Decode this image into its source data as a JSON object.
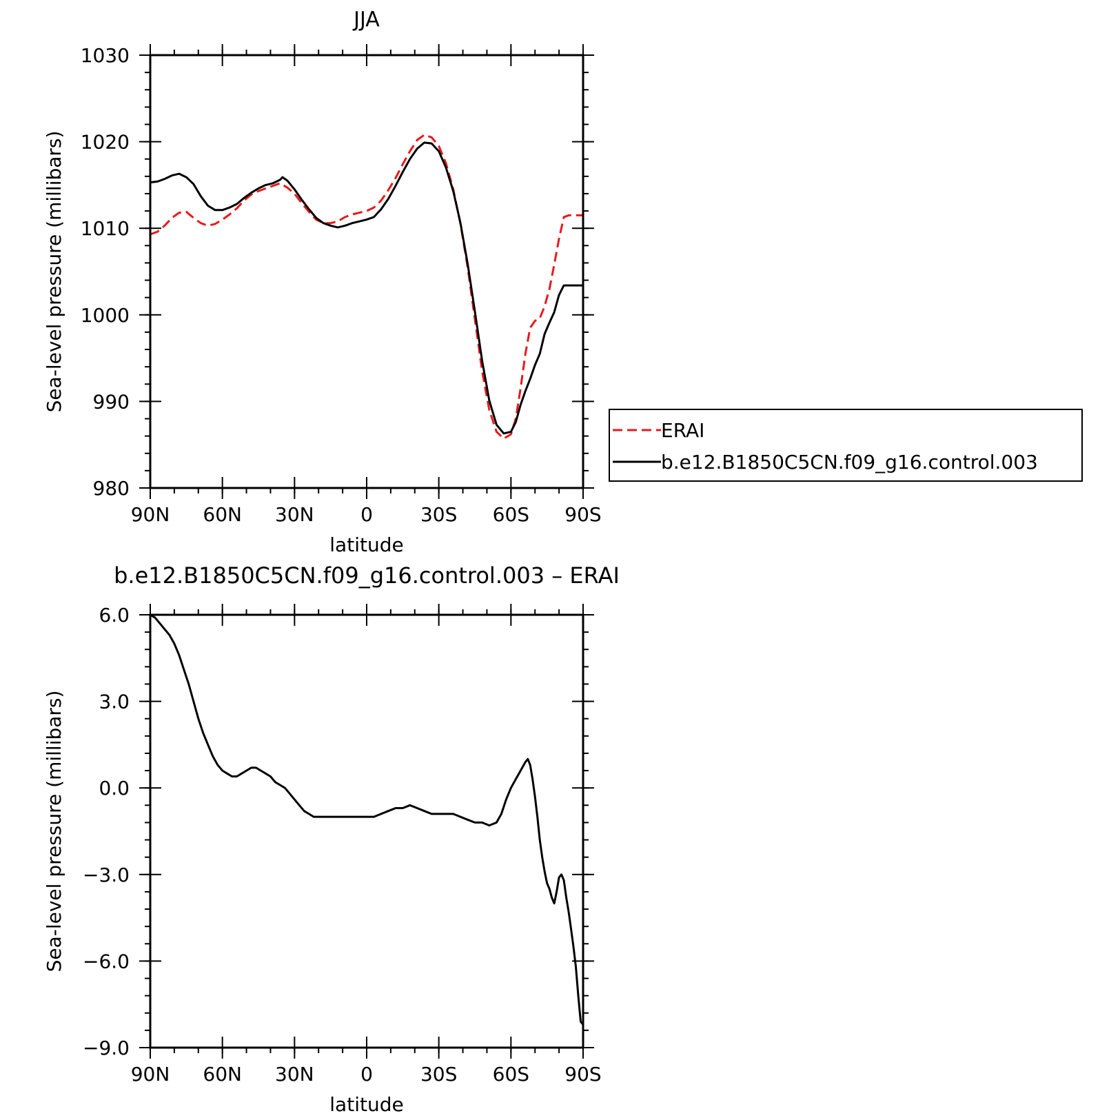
{
  "chart_data": [
    {
      "type": "line",
      "title": "JJA",
      "xlabel": "latitude",
      "ylabel": "Sea-level pressure (millibars)",
      "xlim": [
        90,
        -90
      ],
      "ylim": [
        980,
        1030
      ],
      "x_ticks": [
        {
          "value": 90,
          "label": "90N"
        },
        {
          "value": 60,
          "label": "60N"
        },
        {
          "value": 30,
          "label": "30N"
        },
        {
          "value": 0,
          "label": "0"
        },
        {
          "value": -30,
          "label": "30S"
        },
        {
          "value": -60,
          "label": "60S"
        },
        {
          "value": -90,
          "label": "90S"
        }
      ],
      "y_ticks": [
        {
          "value": 980,
          "label": "980"
        },
        {
          "value": 990,
          "label": "990"
        },
        {
          "value": 1000,
          "label": "1000"
        },
        {
          "value": 1010,
          "label": "1010"
        },
        {
          "value": 1020,
          "label": "1020"
        },
        {
          "value": 1030,
          "label": "1030"
        }
      ],
      "legend": {
        "position": "right",
        "entries": [
          {
            "label": "ERAI",
            "color": "#e8191b",
            "dash": true
          },
          {
            "label": "b.e12.B1850C5CN.f09_g16.control.003",
            "color": "#000000",
            "dash": false
          }
        ]
      },
      "series": [
        {
          "name": "ERAI",
          "color": "#e8191b",
          "dash": true,
          "x": [
            90,
            87,
            84,
            81,
            78,
            75,
            72,
            69,
            66,
            63,
            60,
            57,
            54,
            51,
            48,
            45,
            42,
            39,
            36,
            33,
            30,
            27,
            24,
            21,
            18,
            15,
            12,
            9,
            6,
            3,
            0,
            -3,
            -6,
            -9,
            -12,
            -15,
            -18,
            -21,
            -24,
            -27,
            -30,
            -33,
            -36,
            -39,
            -42,
            -45,
            -48,
            -51,
            -54,
            -57,
            -60,
            -62,
            -64,
            -66,
            -68,
            -70,
            -72,
            -74,
            -76,
            -78,
            -80,
            -82,
            -84,
            -86,
            -88,
            -90
          ],
          "y": [
            1009.3,
            1009.6,
            1010.3,
            1011.2,
            1011.8,
            1011.9,
            1011.2,
            1010.6,
            1010.3,
            1010.5,
            1011.0,
            1011.6,
            1012.3,
            1013.2,
            1013.9,
            1014.3,
            1014.6,
            1014.9,
            1015.2,
            1014.7,
            1014.0,
            1012.9,
            1011.9,
            1011.0,
            1010.6,
            1010.6,
            1010.8,
            1011.3,
            1011.6,
            1011.8,
            1012.0,
            1012.4,
            1013.2,
            1014.4,
            1015.8,
            1017.4,
            1018.9,
            1020.2,
            1020.8,
            1020.5,
            1019.5,
            1017.5,
            1014.5,
            1010.5,
            1005.5,
            999.5,
            993.5,
            989.0,
            986.5,
            985.7,
            986.2,
            988.0,
            991.5,
            995.5,
            998.5,
            999.3,
            999.6,
            1001.0,
            1003.0,
            1005.8,
            1008.8,
            1011.3,
            1011.5,
            1011.5,
            1011.5,
            1011.5
          ]
        },
        {
          "name": "b.e12.B1850C5CN.f09_g16.control.003",
          "color": "#000000",
          "dash": false,
          "x": [
            90,
            87,
            84,
            81,
            78,
            75,
            72,
            69,
            66,
            63,
            60,
            57,
            54,
            51,
            48,
            45,
            42,
            39,
            36,
            35,
            33,
            30,
            27,
            24,
            21,
            18,
            15,
            12,
            9,
            6,
            3,
            0,
            -3,
            -6,
            -9,
            -12,
            -15,
            -18,
            -21,
            -24,
            -27,
            -30,
            -33,
            -36,
            -39,
            -42,
            -45,
            -48,
            -51,
            -54,
            -57,
            -60,
            -62,
            -64,
            -66,
            -68,
            -70,
            -72,
            -74,
            -76,
            -78,
            -80,
            -82,
            -84,
            -86,
            -88,
            -90
          ],
          "y": [
            1015.3,
            1015.4,
            1015.7,
            1016.1,
            1016.3,
            1015.9,
            1015.1,
            1013.7,
            1012.6,
            1012.1,
            1012.1,
            1012.4,
            1012.8,
            1013.5,
            1014.1,
            1014.6,
            1015.0,
            1015.2,
            1015.6,
            1015.9,
            1015.5,
            1014.5,
            1013.3,
            1012.2,
            1011.2,
            1010.6,
            1010.3,
            1010.1,
            1010.3,
            1010.6,
            1010.8,
            1011.0,
            1011.3,
            1012.2,
            1013.4,
            1014.9,
            1016.5,
            1018.0,
            1019.2,
            1019.9,
            1019.8,
            1018.9,
            1017.0,
            1014.3,
            1010.6,
            1005.9,
            1000.4,
            994.7,
            990.1,
            987.3,
            986.3,
            986.5,
            987.6,
            989.6,
            991.2,
            992.6,
            994.2,
            995.5,
            997.8,
            999.1,
            1000.3,
            1002.3,
            1003.4,
            1003.4,
            1003.4,
            1003.4,
            1003.4
          ]
        }
      ]
    },
    {
      "type": "line",
      "title": "b.e12.B1850C5CN.f09_g16.control.003 – ERAI",
      "xlabel": "latitude",
      "ylabel": "Sea-level pressure (millibars)",
      "xlim": [
        90,
        -90
      ],
      "ylim": [
        -9,
        6
      ],
      "x_ticks": [
        {
          "value": 90,
          "label": "90N"
        },
        {
          "value": 60,
          "label": "60N"
        },
        {
          "value": 30,
          "label": "30N"
        },
        {
          "value": 0,
          "label": "0"
        },
        {
          "value": -30,
          "label": "30S"
        },
        {
          "value": -60,
          "label": "60S"
        },
        {
          "value": -90,
          "label": "90S"
        }
      ],
      "y_ticks": [
        {
          "value": -9,
          "label": "−9.0"
        },
        {
          "value": -6,
          "label": "−6.0"
        },
        {
          "value": -3,
          "label": "−3.0"
        },
        {
          "value": 0,
          "label": "0.0"
        },
        {
          "value": 3,
          "label": "3.0"
        },
        {
          "value": 6,
          "label": "6.0"
        }
      ],
      "series": [
        {
          "color": "#000000",
          "dash": false,
          "x": [
            90,
            88,
            86,
            84,
            82,
            80,
            78,
            76,
            74,
            72,
            70,
            68,
            66,
            64,
            62,
            60,
            58,
            56,
            54,
            52,
            50,
            48,
            46,
            44,
            42,
            40,
            38,
            36,
            34,
            32,
            30,
            28,
            26,
            24,
            22,
            20,
            18,
            16,
            14,
            12,
            10,
            8,
            6,
            4,
            2,
            0,
            -3,
            -6,
            -9,
            -12,
            -15,
            -18,
            -21,
            -24,
            -27,
            -30,
            -33,
            -36,
            -39,
            -42,
            -45,
            -48,
            -51,
            -54,
            -56,
            -58,
            -60,
            -62,
            -64,
            -66,
            -67,
            -68,
            -69,
            -70,
            -71,
            -72,
            -73,
            -74,
            -75,
            -76,
            -77,
            -78,
            -79,
            -80,
            -81,
            -82,
            -83,
            -84,
            -85,
            -86,
            -87,
            -88,
            -89,
            -90
          ],
          "y": [
            6.0,
            5.9,
            5.7,
            5.5,
            5.3,
            5.0,
            4.6,
            4.1,
            3.6,
            3.0,
            2.4,
            1.9,
            1.5,
            1.1,
            0.8,
            0.6,
            0.5,
            0.4,
            0.4,
            0.5,
            0.6,
            0.7,
            0.7,
            0.6,
            0.5,
            0.4,
            0.2,
            0.1,
            0.0,
            -0.2,
            -0.4,
            -0.6,
            -0.8,
            -0.9,
            -1.0,
            -1.0,
            -1.0,
            -1.0,
            -1.0,
            -1.0,
            -1.0,
            -1.0,
            -1.0,
            -1.0,
            -1.0,
            -1.0,
            -1.0,
            -0.9,
            -0.8,
            -0.7,
            -0.7,
            -0.6,
            -0.7,
            -0.8,
            -0.9,
            -0.9,
            -0.9,
            -0.9,
            -1.0,
            -1.1,
            -1.2,
            -1.2,
            -1.3,
            -1.2,
            -0.9,
            -0.4,
            0.0,
            0.3,
            0.6,
            0.9,
            1.0,
            0.8,
            0.3,
            -0.3,
            -1.0,
            -1.8,
            -2.4,
            -2.9,
            -3.3,
            -3.5,
            -3.8,
            -4.0,
            -3.6,
            -3.1,
            -3.0,
            -3.2,
            -3.8,
            -4.3,
            -4.9,
            -5.5,
            -6.2,
            -7.2,
            -8.1,
            -8.2
          ]
        }
      ]
    }
  ]
}
